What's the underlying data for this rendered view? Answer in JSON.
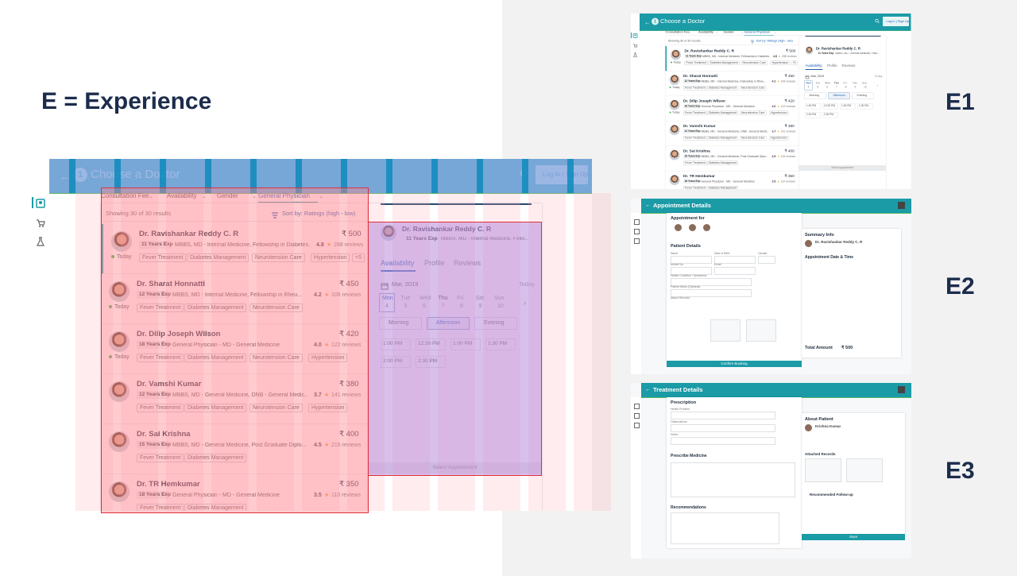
{
  "title": "E = Experience",
  "mockup": {
    "step": "1",
    "header_title": "Choose a Doctor",
    "login": "Log In | Sign Up",
    "filters": [
      "Consultation Fee",
      "Availability",
      "Gender",
      "General Physician"
    ],
    "showing": "Showing 30 of 30 results",
    "sort": "Sort by: Ratings (high - low)",
    "doctors": [
      {
        "name": "Dr. Ravishankar Reddy C. R",
        "experience": "11 Years Exp",
        "degree": "MBBS, MD - Internal Medicine, Fellowship in Diabetes...",
        "price": "₹ 500",
        "rating": "4.8",
        "reviews": "288 reviews",
        "availability": "Today",
        "tags": [
          "Fever Treatment",
          "Diabetes Management",
          "Neurotension Care",
          "Hypertension",
          "+5"
        ]
      },
      {
        "name": "Dr. Sharat Honnatti",
        "experience": "12 Years Exp",
        "degree": "MBBS, MD - Internal Medicine, Fellowship in Rheu...",
        "price": "₹ 450",
        "rating": "4.2",
        "reviews": "106 reviews",
        "availability": "Today",
        "tags": [
          "Fever Treatment",
          "Diabetes Management",
          "Neurotension Care"
        ]
      },
      {
        "name": "Dr. Dilip Joseph Wilson",
        "experience": "18 Years Exp",
        "degree": "General Physician - MD - General Medicine",
        "price": "₹ 420",
        "rating": "4.0",
        "reviews": "122 reviews",
        "availability": "Today",
        "tags": [
          "Fever Treatment",
          "Diabetes Management",
          "Neurotension Care",
          "Hypertension"
        ]
      },
      {
        "name": "Dr. Vamshi Kumar",
        "experience": "12 Years Exp",
        "degree": "MBBS, MD - General Medicine, DNB - General Medic...",
        "price": "₹ 380",
        "rating": "3.7",
        "reviews": "141 reviews",
        "availability": null,
        "tags": [
          "Fever Treatment",
          "Diabetes Management",
          "Neurotension Care",
          "Hypertension"
        ]
      },
      {
        "name": "Dr. Sai Krishna",
        "experience": "15 Years Exp",
        "degree": "MBBS, MD - General Medicine, Post Graduate Diplo...",
        "price": "₹ 400",
        "rating": "4.5",
        "reviews": "215 reviews",
        "availability": null,
        "tags": [
          "Fever Treatment",
          "Diabetes Management"
        ]
      },
      {
        "name": "Dr. TR Hemkumar",
        "experience": "18 Years Exp",
        "degree": "General Physician - MD - General Medicine",
        "price": "₹ 350",
        "rating": "3.5",
        "reviews": "110 reviews",
        "availability": null,
        "tags": [
          "Fever Treatment",
          "Diabetes Management"
        ]
      }
    ],
    "detail": {
      "name": "Dr. Ravishankar Reddy C. R",
      "experience": "11 Years Exp",
      "degree": "MBBS, MD - Internal Medicine, Fello...",
      "tabs": [
        "Availability",
        "Profile",
        "Reviews"
      ],
      "month": "Mar, 2019",
      "today": "Today",
      "days": [
        {
          "day": "Mon",
          "date": "4"
        },
        {
          "day": "Tue",
          "date": "5"
        },
        {
          "day": "Wed",
          "date": "6"
        },
        {
          "day": "Thu",
          "date": "7"
        },
        {
          "day": "Fri",
          "date": "8"
        },
        {
          "day": "Sat",
          "date": "9"
        },
        {
          "day": "Sun",
          "date": "10"
        }
      ],
      "periods": [
        "Morning",
        "Afternoon",
        "Evening"
      ],
      "times": [
        "1:00 PM",
        "12:30 PM",
        "1:00 PM",
        "1:30 PM",
        "2:00 PM",
        "2:30 PM"
      ],
      "button": "Select Appointment"
    }
  },
  "e1": {
    "label": "E1"
  },
  "e2": {
    "label": "E2",
    "title": "Appointment Details",
    "appointment_for": "Appointment for",
    "patient_details": "Patient Details",
    "fields": [
      "Name",
      "Date of Birth",
      "Gender",
      "Mobile No.",
      "Email",
      "Health Condition / Symptoms",
      "Patient Notes (Optional)",
      "Attach Records"
    ],
    "summary_info": "Summary Info",
    "date_time": "Appointment Date & Time",
    "total_amount": "Total Amount",
    "confirm": "Confirm Booking"
  },
  "e3": {
    "label": "E3",
    "title": "Treatment Details",
    "prescription": "Prescription",
    "fields": [
      "Health Problem",
      "Observations",
      "Notes"
    ],
    "prescribe_medicine": "Prescribe Medicine",
    "recommendations": "Recommendations",
    "about_patient": "About Patient",
    "patient_name": "Krishna Kumar",
    "attached_records": "Attached Records",
    "follow_up": "Recommended Follow-up",
    "save": "Save"
  }
}
